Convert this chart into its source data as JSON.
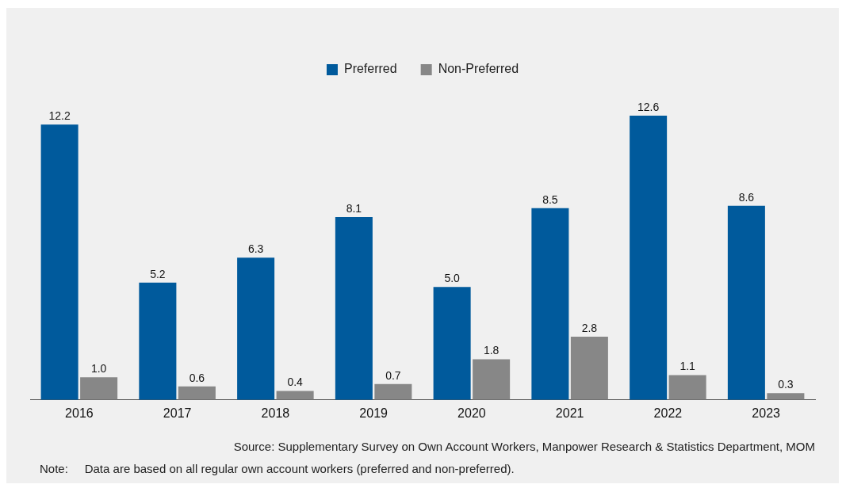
{
  "chart_data": {
    "type": "bar",
    "categories": [
      "2016",
      "2017",
      "2018",
      "2019",
      "2020",
      "2021",
      "2022",
      "2023"
    ],
    "series": [
      {
        "name": "Preferred",
        "color": "#005a9c",
        "values": [
          12.2,
          5.2,
          6.3,
          8.1,
          5.0,
          8.5,
          12.6,
          8.6
        ],
        "value_labels": [
          "12.2",
          "5.2",
          "6.3",
          "8.1",
          "5.0",
          "8.5",
          "12.6",
          "8.6"
        ]
      },
      {
        "name": "Non-Preferred",
        "color": "#878787",
        "values": [
          1.0,
          0.6,
          0.4,
          0.7,
          1.8,
          2.8,
          1.1,
          0.3
        ],
        "value_labels": [
          "1.0",
          "0.6",
          "0.4",
          "0.7",
          "1.8",
          "2.8",
          "1.1",
          "0.3"
        ]
      }
    ],
    "legend": "top",
    "grid": false,
    "annotations": [
      "Source: Supplementary Survey on Own Account Workers, Manpower Research & Statistics Department, MOM",
      "Note:     Data are based on all regular own account workers (preferred and non-preferred)."
    ]
  }
}
